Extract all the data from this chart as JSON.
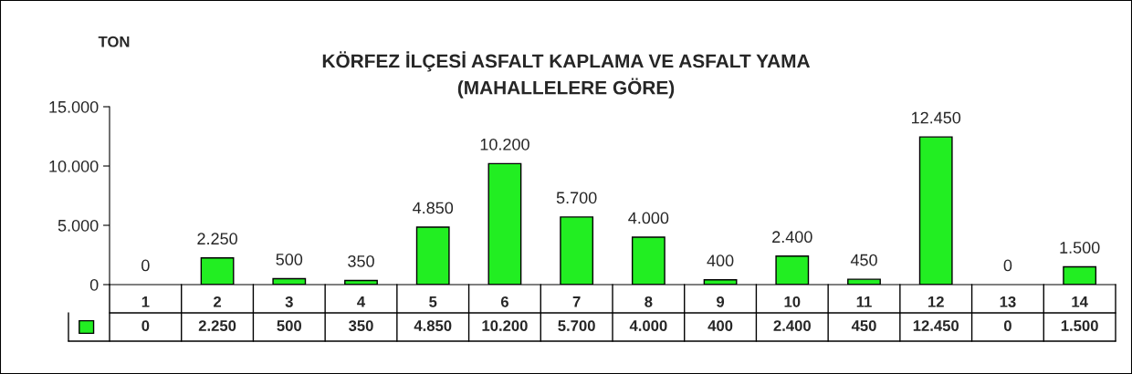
{
  "chart_data": {
    "type": "bar",
    "title": "KÖRFEZ İLÇESİ ASFALT KAPLAMA VE ASFALT YAMA\n(MAHALLELERE GÖRE)",
    "ylabel": "TON",
    "categories": [
      "1",
      "2",
      "3",
      "4",
      "5",
      "6",
      "7",
      "8",
      "9",
      "10",
      "11",
      "12",
      "13",
      "14"
    ],
    "values": [
      0,
      2250,
      500,
      350,
      4850,
      10200,
      5700,
      4000,
      400,
      2400,
      450,
      12450,
      0,
      1500
    ],
    "color": "#22ee22",
    "ylim": [
      0,
      15000
    ],
    "yticks": [
      0,
      {
        "value": 5000,
        "label": "5.000"
      },
      {
        "value": 10000,
        "label": "10.000"
      },
      {
        "value": 15000,
        "label": "15.000"
      }
    ],
    "value_labels": [
      "0",
      "2.250",
      "500",
      "350",
      "4.850",
      "10.200",
      "5.700",
      "4.000",
      "400",
      "2.400",
      "450",
      "12.450",
      "0",
      "1.500"
    ],
    "grid": false
  }
}
